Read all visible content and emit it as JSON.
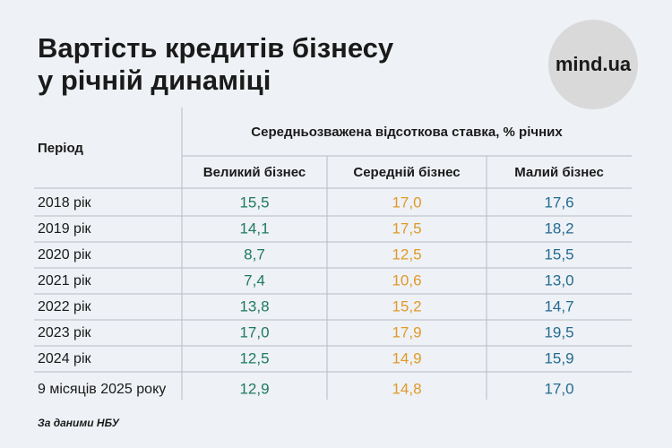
{
  "header": {
    "title_lines": [
      "Вартість кредитів бізнесу",
      "у річній динаміці"
    ],
    "logo": "mind.ua"
  },
  "table": {
    "period_header": "Період",
    "group_header": "Середньозважена відсоткова ставка, % річних",
    "columns": [
      {
        "label": "Великий бізнес",
        "color": "#1e7a5e"
      },
      {
        "label": "Середній бізнес",
        "color": "#e09a2c"
      },
      {
        "label": "Малий бізнес",
        "color": "#236b92"
      }
    ],
    "rows": [
      [
        "2018 рік",
        "15,5",
        "17,0",
        "17,6"
      ],
      [
        "2019 рік",
        "14,1",
        "17,5",
        "18,2"
      ],
      [
        "2020 рік",
        "8,7",
        "12,5",
        "15,5"
      ],
      [
        "2021 рік",
        "7,4",
        "10,6",
        "13,0"
      ],
      [
        "2022 рік",
        "13,8",
        "15,2",
        "14,7"
      ],
      [
        "2023 рік",
        "17,0",
        "17,9",
        "19,5"
      ],
      [
        "2024 рік",
        "12,5",
        "14,9",
        "15,9"
      ],
      [
        "9 місяців 2025 року",
        "12,9",
        "14,8",
        "17,0"
      ]
    ]
  },
  "source": "За даними НБУ"
}
